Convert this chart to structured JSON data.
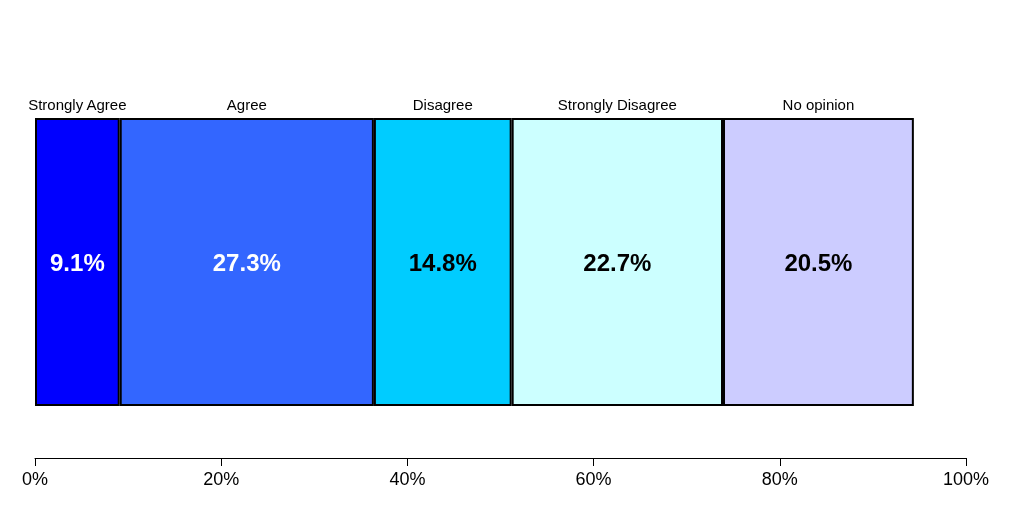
{
  "chart_data": {
    "type": "bar",
    "orientation": "horizontal",
    "stacked": true,
    "categories": [
      null
    ],
    "series": [
      {
        "name": "Strongly Agree",
        "color": "#0000ff",
        "values": [
          9.1
        ],
        "value_labels": [
          "9.1%"
        ]
      },
      {
        "name": "Agree",
        "color": "#3366ff",
        "values": [
          27.3
        ],
        "value_labels": [
          "27.3%"
        ]
      },
      {
        "name": "Disagree",
        "color": "#00ccff",
        "values": [
          14.8
        ],
        "value_labels": [
          "14.8%"
        ]
      },
      {
        "name": "Strongly Disagree",
        "color": "#ccffff",
        "values": [
          22.7
        ],
        "value_labels": [
          "22.7%"
        ]
      },
      {
        "name": "No opinion",
        "color": "#ccccff",
        "values": [
          20.5
        ],
        "value_labels": [
          "20.5%"
        ]
      }
    ],
    "xlim": [
      0,
      100
    ],
    "xticks": [
      {
        "value": 0,
        "label": "0%"
      },
      {
        "value": 20,
        "label": "20%"
      },
      {
        "value": 40,
        "label": "40%"
      },
      {
        "value": 60,
        "label": "60%"
      },
      {
        "value": 80,
        "label": "80%"
      },
      {
        "value": 100,
        "label": "100%"
      }
    ],
    "grid": false,
    "legend": false
  }
}
